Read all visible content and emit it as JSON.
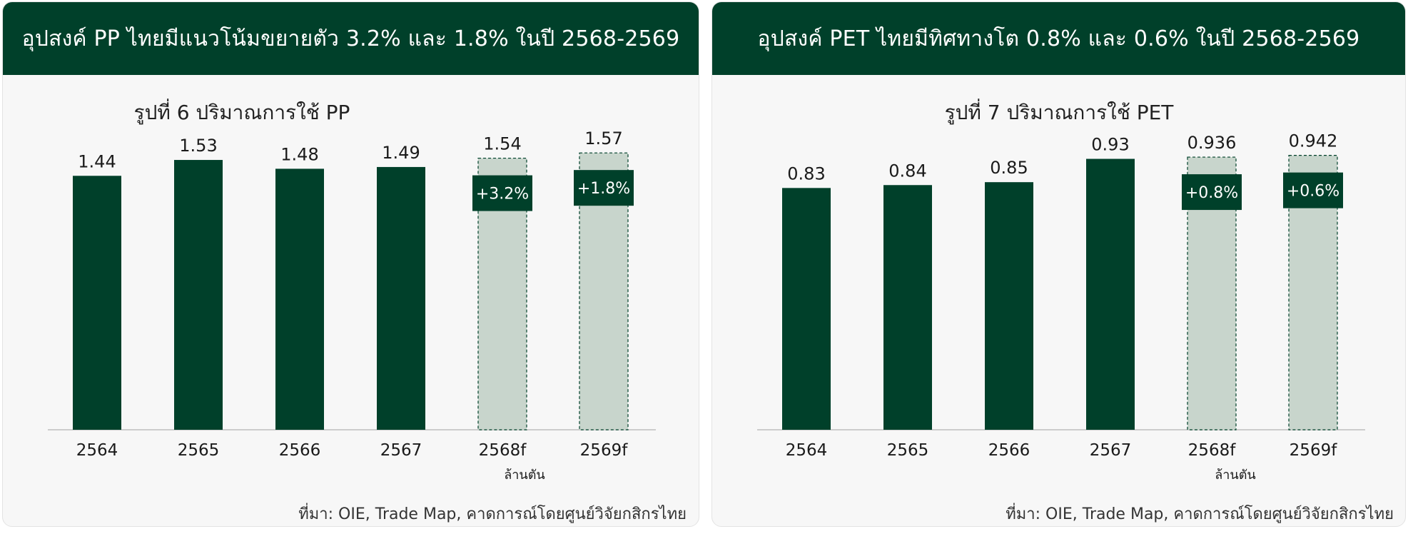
{
  "panels": [
    {
      "header": "อุปสงค์ PP ไทยมีแนวโน้มขยายตัว 3.2% และ 1.8% ในปี 2568-2569",
      "source": "ที่มา: OIE, Trade Map, คาดการณ์โดยศูนย์วิจัยกสิกรไทย"
    },
    {
      "header": "อุปสงค์ PET ไทยมีทิศทางโต 0.8% และ 0.6% ในปี 2568-2569",
      "source": "ที่มา: OIE, Trade Map, คาดการณ์โดยศูนย์วิจัยกสิกรไทย"
    }
  ],
  "colors": {
    "header_bg": "#00402a",
    "actual_bar": "#00402a",
    "forecast_bar": "#c8d5cc",
    "forecast_border": "#00402a",
    "growth_box": "#00402a"
  },
  "chart_data": [
    {
      "type": "bar",
      "title": "รูปที่ 6 ปริมาณการใช้ PP",
      "categories": [
        "2564",
        "2565",
        "2566",
        "2567",
        "2568f",
        "2569f"
      ],
      "values": [
        1.44,
        1.53,
        1.48,
        1.49,
        1.54,
        1.57
      ],
      "value_labels": [
        "1.44",
        "1.53",
        "1.48",
        "1.49",
        "1.54",
        "1.57"
      ],
      "forecast": [
        false,
        false,
        false,
        false,
        true,
        true
      ],
      "growth_labels": [
        "",
        "",
        "",
        "",
        "+3.2%",
        "+1.8%"
      ],
      "unit": "ล้านตัน",
      "ylim": [
        0,
        1.85
      ],
      "grid": false,
      "legend": "none"
    },
    {
      "type": "bar",
      "title": "รูปที่ 7 ปริมาณการใช้ PET",
      "categories": [
        "2564",
        "2565",
        "2566",
        "2567",
        "2568f",
        "2569f"
      ],
      "values": [
        0.83,
        0.84,
        0.85,
        0.93,
        0.936,
        0.942
      ],
      "value_labels": [
        "0.83",
        "0.84",
        "0.85",
        "0.93",
        "0.936",
        "0.942"
      ],
      "forecast": [
        false,
        false,
        false,
        false,
        true,
        true
      ],
      "growth_labels": [
        "",
        "",
        "",
        "",
        "+0.8%",
        "+0.6%"
      ],
      "unit": "ล้านตัน",
      "ylim": [
        0,
        1.12
      ],
      "grid": false,
      "legend": "none"
    }
  ]
}
